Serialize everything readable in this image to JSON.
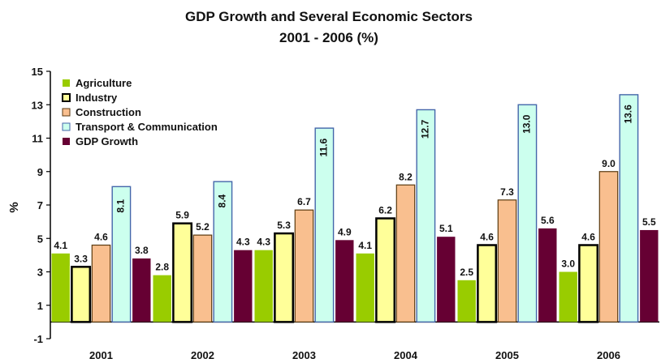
{
  "chart_data": {
    "type": "bar",
    "title": "GDP Growth and Several Economic Sectors",
    "subtitle": "2001 -  2006 (%)",
    "xlabel": "",
    "ylabel": "%",
    "ylim": [
      -1,
      15
    ],
    "yticks": [
      -1,
      1,
      3,
      5,
      7,
      9,
      11,
      13,
      15
    ],
    "grid": false,
    "legend": "top-left",
    "categories": [
      "2001",
      "2002",
      "2003",
      "2004",
      "2005",
      "2006"
    ],
    "series": [
      {
        "name": "Agriculture",
        "color": "#99cc00",
        "values": [
          4.1,
          2.8,
          4.3,
          4.1,
          2.5,
          3.0
        ]
      },
      {
        "name": "Industry",
        "color": "#ffff99",
        "values": [
          3.3,
          5.9,
          5.3,
          6.2,
          4.6,
          4.6
        ]
      },
      {
        "name": "Construction",
        "color": "#f9bf8f",
        "values": [
          4.6,
          5.2,
          6.7,
          8.2,
          7.3,
          9.0
        ]
      },
      {
        "name": "Transport & Communication",
        "color": "#ccffee",
        "values": [
          8.1,
          8.4,
          11.6,
          12.7,
          13.0,
          13.6
        ]
      },
      {
        "name": "GDP Growth",
        "color": "#660033",
        "values": [
          3.8,
          4.3,
          4.9,
          5.1,
          5.6,
          5.5
        ]
      }
    ],
    "data_labels": [
      [
        "4.1",
        "2.8",
        "4.3",
        "4.1",
        "2.5",
        "3.0"
      ],
      [
        "3.3",
        "5.9",
        "5.3",
        "6.2",
        "4.6",
        "4.6"
      ],
      [
        "4.6",
        "5.2",
        "6.7",
        "8.2",
        "7.3",
        "9.0"
      ],
      [
        "8.1",
        "8.4",
        "11.6",
        "12.7",
        "13.0",
        "13.6"
      ],
      [
        "3.8",
        "4.3",
        "4.9",
        "5.1",
        "5.6",
        "5.5"
      ]
    ]
  }
}
